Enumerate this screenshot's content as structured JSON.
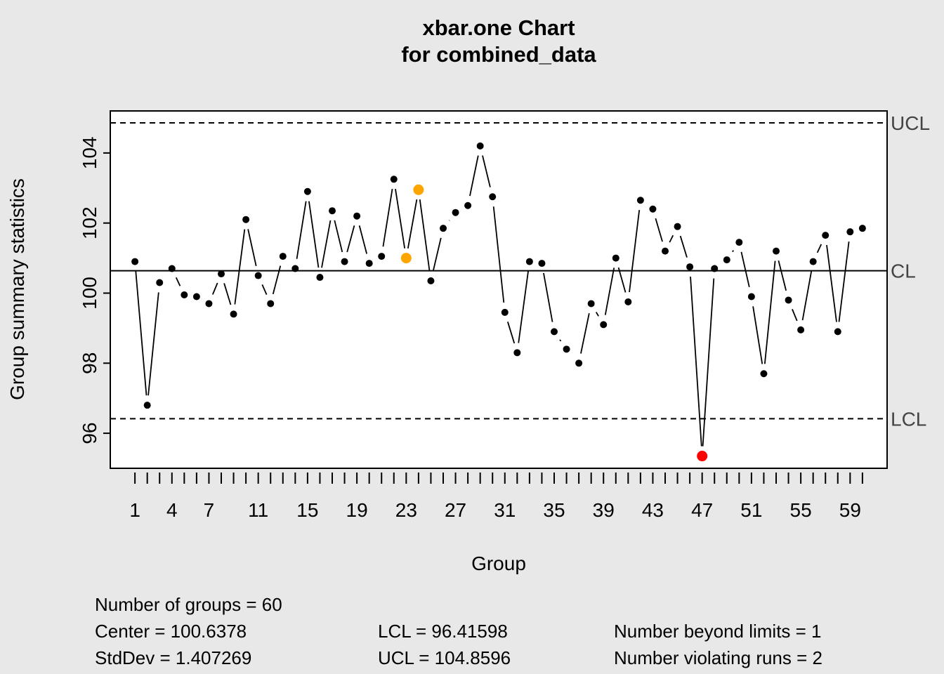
{
  "chart_data": {
    "type": "line",
    "title": "xbar.one Chart",
    "subtitle": "for combined_data",
    "xlabel": "Group",
    "ylabel": "Group summary statistics",
    "xlim": [
      -1.0,
      62.0
    ],
    "ylim": [
      95.0,
      105.2
    ],
    "y_ticks": [
      96,
      98,
      100,
      102,
      104
    ],
    "x_tick_labels": [
      1,
      4,
      7,
      11,
      15,
      19,
      23,
      27,
      31,
      35,
      39,
      43,
      47,
      51,
      55,
      59
    ],
    "center_line": 100.6378,
    "lcl": 96.41598,
    "ucl": 104.8596,
    "limit_labels": {
      "ucl": "UCL",
      "cl": "CL",
      "lcl": "LCL"
    },
    "groups": [
      1,
      2,
      3,
      4,
      5,
      6,
      7,
      8,
      9,
      10,
      11,
      12,
      13,
      14,
      15,
      16,
      17,
      18,
      19,
      20,
      21,
      22,
      23,
      24,
      25,
      26,
      27,
      28,
      29,
      30,
      31,
      32,
      33,
      34,
      35,
      36,
      37,
      38,
      39,
      40,
      41,
      42,
      43,
      44,
      45,
      46,
      47,
      48,
      49,
      50,
      51,
      52,
      53,
      54,
      55,
      56,
      57,
      58,
      59,
      60
    ],
    "values": [
      100.9,
      96.8,
      100.3,
      100.7,
      99.95,
      99.9,
      99.7,
      100.55,
      99.4,
      102.1,
      100.5,
      99.7,
      101.05,
      100.7,
      102.9,
      100.45,
      102.35,
      100.9,
      102.2,
      100.85,
      101.05,
      103.25,
      101.0,
      102.95,
      100.35,
      101.85,
      102.3,
      102.5,
      104.2,
      102.75,
      99.45,
      98.3,
      100.9,
      100.85,
      98.9,
      98.4,
      98.0,
      99.7,
      99.1,
      101.0,
      99.75,
      102.65,
      102.4,
      101.2,
      101.9,
      100.75,
      95.35,
      100.7,
      100.95,
      101.45,
      99.9,
      97.7,
      101.2,
      99.8,
      98.95,
      100.9,
      101.65,
      98.9,
      101.75,
      101.85
    ],
    "beyond_limits_points": [
      47
    ],
    "violating_runs_points": [
      23,
      24
    ],
    "colors": {
      "normal": "#000000",
      "beyond_limits": "#ff0000",
      "violating_runs": "#ffa500"
    }
  },
  "stats": {
    "groups": "Number of groups = 60",
    "center": "Center = 100.6378",
    "stddev": "StdDev = 1.407269",
    "lcl": "LCL = 96.41598",
    "ucl": "UCL = 104.8596",
    "beyond": "Number beyond limits = 1",
    "runs": "Number violating runs = 2"
  }
}
